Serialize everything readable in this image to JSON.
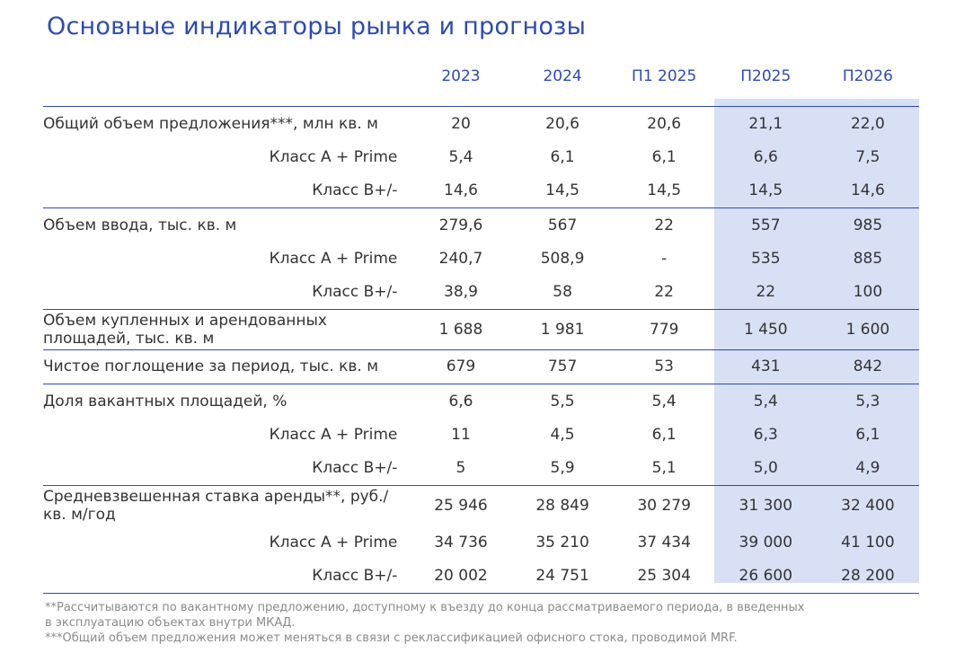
{
  "title": "Основные индикаторы рынка и прогнозы",
  "columns": [
    "2023",
    "2024",
    "П1 2025",
    "П2025",
    "П2026"
  ],
  "rows": [
    {
      "label": "Общий объем предложения***, млн кв. м",
      "values": [
        "20",
        "20,6",
        "20,6",
        "21,1",
        "22,0"
      ]
    },
    {
      "label": "Класс А + Prime",
      "values": [
        "5,4",
        "6,1",
        "6,1",
        "6,6",
        "7,5"
      ]
    },
    {
      "label": "Класс В+/-",
      "values": [
        "14,6",
        "14,5",
        "14,5",
        "14,5",
        "14,6"
      ]
    },
    {
      "label": "Объем ввода, тыс. кв. м",
      "values": [
        "279,6",
        "567",
        "22",
        "557",
        "985"
      ]
    },
    {
      "label": "Класс А + Prime",
      "values": [
        "240,7",
        "508,9",
        "-",
        "535",
        "885"
      ]
    },
    {
      "label": "Класс В+/-",
      "values": [
        "38,9",
        "58",
        "22",
        "22",
        "100"
      ]
    },
    {
      "label": "Объем купленных и арендованных площадей, тыс. кв. м",
      "values": [
        "1 688",
        "1 981",
        "779",
        "1 450",
        "1 600"
      ]
    },
    {
      "label": "Чистое поглощение за период, тыс. кв. м",
      "values": [
        "679",
        "757",
        "53",
        "431",
        "842"
      ]
    },
    {
      "label": "Доля вакантных площадей, %",
      "values": [
        "6,6",
        "5,5",
        "5,4",
        "5,4",
        "5,3"
      ]
    },
    {
      "label": "Класс А + Prime",
      "values": [
        "11",
        "4,5",
        "6,1",
        "6,3",
        "6,1"
      ]
    },
    {
      "label": "Класс В+/-",
      "values": [
        "5",
        "5,9",
        "5,1",
        "5,0",
        "4,9"
      ]
    },
    {
      "label": "Средневзвешенная ставка аренды**, руб./кв. м/год",
      "values": [
        "25 946",
        "28 849",
        "30 279",
        "31 300",
        "32 400"
      ]
    },
    {
      "label": "Класс А + Prime",
      "values": [
        "34 736",
        "35 210",
        "37 434",
        "39 000",
        "41 100"
      ]
    },
    {
      "label": "Класс В+/-",
      "values": [
        "20 002",
        "24 751",
        "25 304",
        "26 600",
        "28 200"
      ]
    }
  ],
  "notes": [
    "**Рассчитываются по вакантному предложению, доступному к въезду до конца рассматриваемого периода, в введенных",
    "в эксплуатацию объектах внутри МКАД.",
    "***Общий объем предложения может меняться в связи с реклассификацией офисного стока, проводимой MRF."
  ],
  "colors": {
    "accent": "#2e4bb0",
    "forecast_highlight": "#d8e0f6",
    "text": "#333333",
    "notes": "#8a8a8a"
  }
}
